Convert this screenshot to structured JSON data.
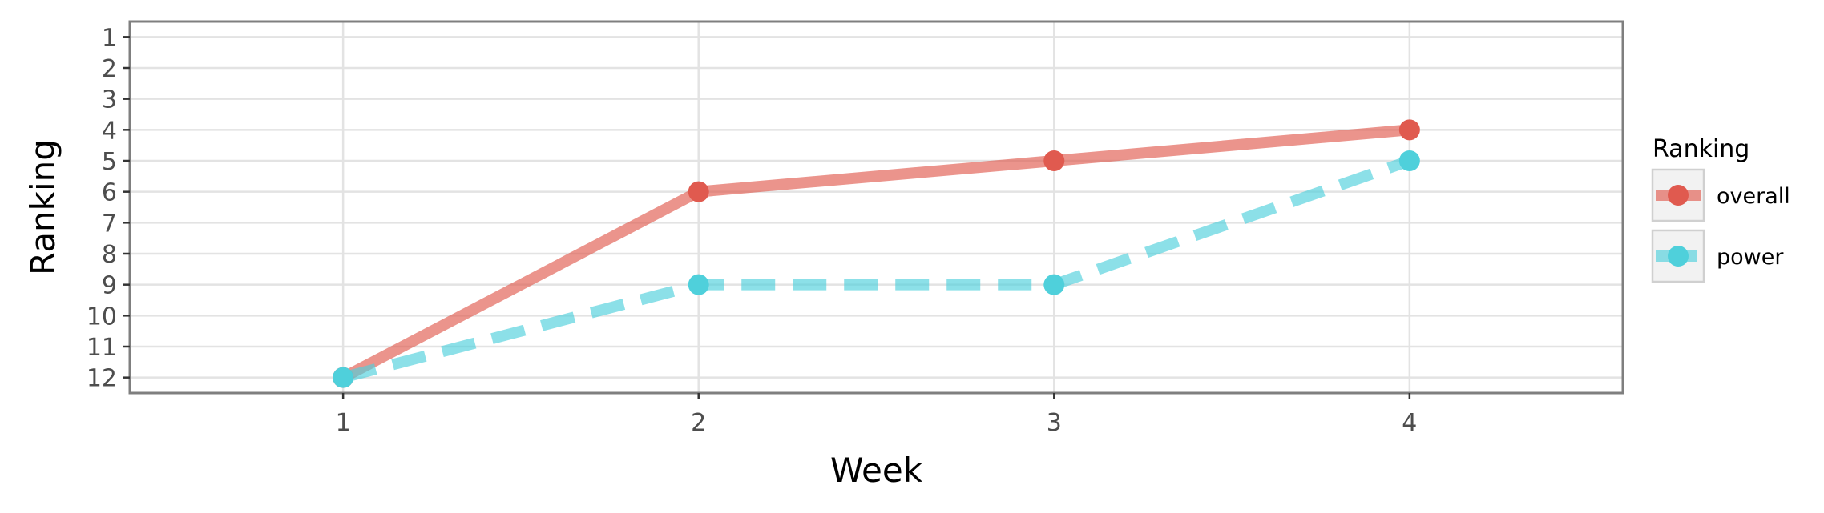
{
  "chart_data": {
    "type": "line",
    "title": "",
    "xlabel": "Week",
    "ylabel": "Ranking",
    "x": [
      1,
      2,
      3,
      4
    ],
    "x_ticks": [
      "1",
      "2",
      "3",
      "4"
    ],
    "xlim": [
      0.4,
      4.6
    ],
    "y_ticks": [
      "1",
      "2",
      "3",
      "4",
      "5",
      "6",
      "7",
      "8",
      "9",
      "10",
      "11",
      "12"
    ],
    "ylim": [
      12.5,
      0.5
    ],
    "y_reversed": true,
    "grid": true,
    "legend": {
      "title": "Ranking",
      "position": "right"
    },
    "series": [
      {
        "name": "overall",
        "values": [
          12,
          6,
          5,
          4
        ],
        "color": "#e05a4f",
        "line_style": "solid"
      },
      {
        "name": "power",
        "values": [
          12,
          9,
          9,
          5
        ],
        "color": "#4fd0db",
        "line_style": "dashed"
      }
    ]
  }
}
